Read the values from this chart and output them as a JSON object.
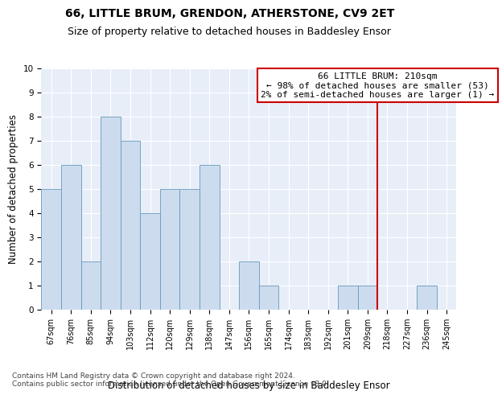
{
  "title": "66, LITTLE BRUM, GRENDON, ATHERSTONE, CV9 2ET",
  "subtitle": "Size of property relative to detached houses in Baddesley Ensor",
  "xlabel": "Distribution of detached houses by size in Baddesley Ensor",
  "ylabel": "Number of detached properties",
  "categories": [
    "67sqm",
    "76sqm",
    "85sqm",
    "94sqm",
    "103sqm",
    "112sqm",
    "120sqm",
    "129sqm",
    "138sqm",
    "147sqm",
    "156sqm",
    "165sqm",
    "174sqm",
    "183sqm",
    "192sqm",
    "201sqm",
    "209sqm",
    "218sqm",
    "227sqm",
    "236sqm",
    "245sqm"
  ],
  "values": [
    5,
    6,
    2,
    8,
    7,
    4,
    5,
    5,
    6,
    0,
    2,
    1,
    0,
    0,
    0,
    1,
    1,
    0,
    0,
    1,
    0
  ],
  "bar_color": "#ccdcee",
  "bar_edge_color": "#6699bb",
  "vline_color": "#cc0000",
  "vline_index": 16.5,
  "annotation_text": "66 LITTLE BRUM: 210sqm\n← 98% of detached houses are smaller (53)\n2% of semi-detached houses are larger (1) →",
  "annotation_box_color": "#cc0000",
  "ylim": [
    0,
    10
  ],
  "yticks": [
    0,
    1,
    2,
    3,
    4,
    5,
    6,
    7,
    8,
    9,
    10
  ],
  "footer": "Contains HM Land Registry data © Crown copyright and database right 2024.\nContains public sector information licensed under the Open Government Licence v3.0.",
  "bg_color": "#e8eef8",
  "title_fontsize": 10,
  "subtitle_fontsize": 9,
  "xlabel_fontsize": 8.5,
  "ylabel_fontsize": 8.5,
  "tick_fontsize": 7,
  "annotation_fontsize": 8,
  "footer_fontsize": 6.5
}
